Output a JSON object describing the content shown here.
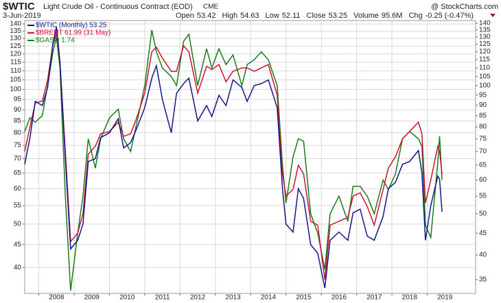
{
  "chart_data": {
    "type": "line",
    "title": "$WTIC",
    "subtitle": "Light Crude Oil - Continuous Contract (EOD)",
    "exchange": "CME",
    "watermark": "@ StockCharts.com",
    "date": "3-Jun-2019",
    "stats": [
      {
        "label": "Open",
        "value": "53.42"
      },
      {
        "label": "High",
        "value": "54.63"
      },
      {
        "label": "Low",
        "value": "52.11"
      },
      {
        "label": "Close",
        "value": "53.25"
      },
      {
        "label": "Volume",
        "value": "95.6M"
      },
      {
        "label": "Chg",
        "value": "-0.25 (-0.47%)"
      }
    ],
    "log_scale": true,
    "grid": true,
    "xlim": [
      2007.6,
      2020.37
    ],
    "xticks": [
      2008,
      2009,
      2010,
      2011,
      2012,
      2013,
      2014,
      2015,
      2016,
      2017,
      2018,
      2019
    ],
    "ylim": [
      35,
      142.5
    ],
    "yticks": [
      40,
      45,
      50,
      55,
      60,
      65,
      70,
      75,
      80,
      85,
      90,
      95,
      100,
      105,
      110,
      115,
      120,
      125,
      130,
      135,
      140
    ],
    "y2lim": [
      32.5,
      142.1
    ],
    "y2ticks": [
      35,
      40,
      45,
      50,
      55,
      60,
      65,
      70,
      75,
      80,
      85,
      90,
      95,
      100,
      105,
      110,
      115,
      120,
      125,
      130,
      135,
      140
    ],
    "x": [
      2007.6,
      2007.75,
      2007.9,
      2008.1,
      2008.25,
      2008.4,
      2008.5,
      2008.6,
      2008.75,
      2008.9,
      2009.1,
      2009.25,
      2009.4,
      2009.6,
      2009.75,
      2010.0,
      2010.25,
      2010.4,
      2010.6,
      2010.75,
      2011.0,
      2011.2,
      2011.33,
      2011.5,
      2011.75,
      2011.9,
      2012.1,
      2012.25,
      2012.5,
      2012.75,
      2012.9,
      2013.1,
      2013.3,
      2013.5,
      2013.75,
      2013.9,
      2014.1,
      2014.3,
      2014.5,
      2014.75,
      2014.9,
      2015.0,
      2015.2,
      2015.35,
      2015.5,
      2015.7,
      2015.9,
      2016.1,
      2016.25,
      2016.5,
      2016.75,
      2016.9,
      2017.1,
      2017.3,
      2017.5,
      2017.75,
      2017.9,
      2018.1,
      2018.3,
      2018.5,
      2018.75,
      2018.85,
      2018.95,
      2019.1,
      2019.3,
      2019.35,
      2019.42
    ],
    "series": [
      {
        "name": "$GASO 1.74",
        "color": "#1a7a1a",
        "axis": "y2",
        "values": [
          78,
          84,
          82,
          85,
          100,
          120,
          130,
          110,
          55,
          33,
          45,
          55,
          75,
          64,
          75,
          84,
          88,
          75,
          70,
          80,
          100,
          135,
          120,
          110,
          105,
          100,
          127,
          132,
          100,
          122,
          110,
          122,
          112,
          118,
          100,
          112,
          115,
          120,
          115,
          100,
          65,
          53,
          68,
          75,
          74,
          50,
          45,
          37,
          50,
          55,
          48,
          58,
          58,
          55,
          50,
          60,
          57,
          62,
          75,
          78,
          75,
          72,
          47,
          44,
          66,
          76,
          60
        ]
      },
      {
        "name": "$BRENT 61.99 (31 May)",
        "color": "#cc1133",
        "axis": "y2",
        "values": [
          70,
          80,
          91,
          92,
          103,
          125,
          133,
          113,
          70,
          43,
          45,
          50,
          69,
          72,
          77,
          78,
          82,
          76,
          77,
          83,
          96,
          120,
          123,
          116,
          108,
          108,
          124,
          120,
          96,
          111,
          109,
          112,
          102,
          108,
          110,
          110,
          108,
          110,
          112,
          95,
          62,
          55,
          57,
          65,
          62,
          48,
          47,
          35,
          47,
          48,
          49,
          55,
          56,
          52,
          47,
          57,
          64,
          68,
          75,
          78,
          82,
          77,
          53,
          60,
          72,
          70,
          61.99
        ]
      },
      {
        "name": "$WTIC (Monthly) 53.25",
        "color": "#14148a",
        "values": [
          68,
          78,
          94,
          92,
          101,
          127,
          138,
          115,
          70,
          44,
          46,
          50,
          69,
          70,
          78,
          80,
          86,
          74,
          76,
          81,
          91,
          106,
          113,
          95,
          80,
          98,
          103,
          106,
          85,
          92,
          87,
          97,
          92,
          105,
          101,
          94,
          102,
          103,
          105,
          91,
          60,
          50,
          48,
          60,
          57,
          45,
          43,
          36,
          46,
          48,
          46,
          53,
          54,
          47,
          46,
          52,
          60,
          62,
          68,
          69,
          73,
          65,
          46,
          55,
          64,
          63,
          53.25
        ]
      }
    ]
  }
}
